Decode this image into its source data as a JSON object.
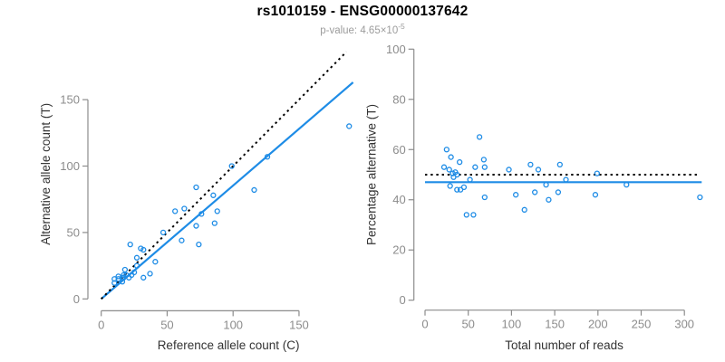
{
  "page": {
    "background": "#ffffff"
  },
  "header": {
    "title": "rs1010159 - ENSG00000137642",
    "subtitle_prefix": "p-value: 4.65×10",
    "subtitle_exponent": "-5"
  },
  "colors": {
    "accent_blue": "#1e8ce6",
    "dotted_black": "#000000",
    "axis_gray": "#8c8c8c",
    "tick_label_gray": "#8c8c8c",
    "axis_title_dark": "#333333",
    "subtitle_gray": "#9c9c9c"
  },
  "chart_data": [
    {
      "type": "scatter",
      "panel": "left",
      "title": "",
      "xlabel": "Reference allele count (C)",
      "ylabel": "Alternative allele count (T)",
      "xlim": [
        0,
        193
      ],
      "ylim": [
        0,
        188
      ],
      "xticks": [
        0,
        50,
        100,
        150
      ],
      "yticks": [
        0,
        50,
        100,
        150
      ],
      "grid": false,
      "legend": null,
      "marker": "open-circle",
      "points": [
        [
          10,
          15
        ],
        [
          10,
          12
        ],
        [
          13,
          17
        ],
        [
          18,
          22
        ],
        [
          13,
          15
        ],
        [
          16,
          16
        ],
        [
          17,
          18
        ],
        [
          19,
          18
        ],
        [
          17,
          16
        ],
        [
          16,
          13
        ],
        [
          21,
          16
        ],
        [
          23,
          18
        ],
        [
          25,
          20
        ],
        [
          27,
          25
        ],
        [
          32,
          16
        ],
        [
          37,
          19
        ],
        [
          27,
          31
        ],
        [
          22,
          41
        ],
        [
          30,
          38
        ],
        [
          32,
          37
        ],
        [
          41,
          28
        ],
        [
          47,
          50
        ],
        [
          61,
          44
        ],
        [
          74,
          41
        ],
        [
          56,
          66
        ],
        [
          72,
          55
        ],
        [
          63,
          68
        ],
        [
          76,
          64
        ],
        [
          86,
          57
        ],
        [
          88,
          66
        ],
        [
          72,
          84
        ],
        [
          85,
          78
        ],
        [
          116,
          82
        ],
        [
          99,
          100
        ],
        [
          126,
          107
        ],
        [
          188,
          130
        ]
      ],
      "lines": [
        {
          "name": "identity-line",
          "style": "dotted",
          "color": "#000000",
          "x1": 0,
          "y1": 0,
          "x2": 186,
          "y2": 186
        },
        {
          "name": "regression-line",
          "style": "solid",
          "color": "#1e8ce6",
          "x1": 0,
          "y1": 0,
          "x2": 191,
          "y2": 163
        }
      ]
    },
    {
      "type": "scatter",
      "panel": "right",
      "title": "",
      "xlabel": "Total number of reads",
      "ylabel": "Percentage alternative (T)",
      "xlim": [
        0,
        322
      ],
      "ylim": [
        0,
        100
      ],
      "xticks": [
        0,
        50,
        100,
        150,
        200,
        250,
        300
      ],
      "yticks": [
        0,
        20,
        40,
        60,
        80,
        100
      ],
      "grid": false,
      "legend": null,
      "marker": "open-circle",
      "points": [
        [
          25,
          60
        ],
        [
          22,
          53
        ],
        [
          30,
          57
        ],
        [
          40,
          55
        ],
        [
          28,
          52
        ],
        [
          32,
          50.5
        ],
        [
          35,
          51
        ],
        [
          37,
          50
        ],
        [
          33,
          49
        ],
        [
          29,
          45.5
        ],
        [
          37,
          44
        ],
        [
          41,
          44
        ],
        [
          45,
          45
        ],
        [
          52,
          48
        ],
        [
          48,
          34
        ],
        [
          56,
          34
        ],
        [
          58,
          53
        ],
        [
          63,
          65
        ],
        [
          68,
          56
        ],
        [
          69,
          53
        ],
        [
          69,
          41
        ],
        [
          97,
          52
        ],
        [
          105,
          42
        ],
        [
          115,
          36
        ],
        [
          122,
          54
        ],
        [
          127,
          43
        ],
        [
          131,
          52
        ],
        [
          140,
          46
        ],
        [
          143,
          40
        ],
        [
          154,
          43
        ],
        [
          156,
          54
        ],
        [
          163,
          48
        ],
        [
          197,
          42
        ],
        [
          199,
          50.5
        ],
        [
          233,
          46
        ],
        [
          318,
          41
        ]
      ],
      "lines": [
        {
          "name": "expected-50-percent-line",
          "style": "dotted",
          "color": "#000000",
          "x1": 0,
          "y1": 50,
          "x2": 315,
          "y2": 50
        },
        {
          "name": "mean-percentage-line",
          "style": "solid",
          "color": "#1e8ce6",
          "x1": 0,
          "y1": 47,
          "x2": 320,
          "y2": 47
        }
      ]
    }
  ]
}
